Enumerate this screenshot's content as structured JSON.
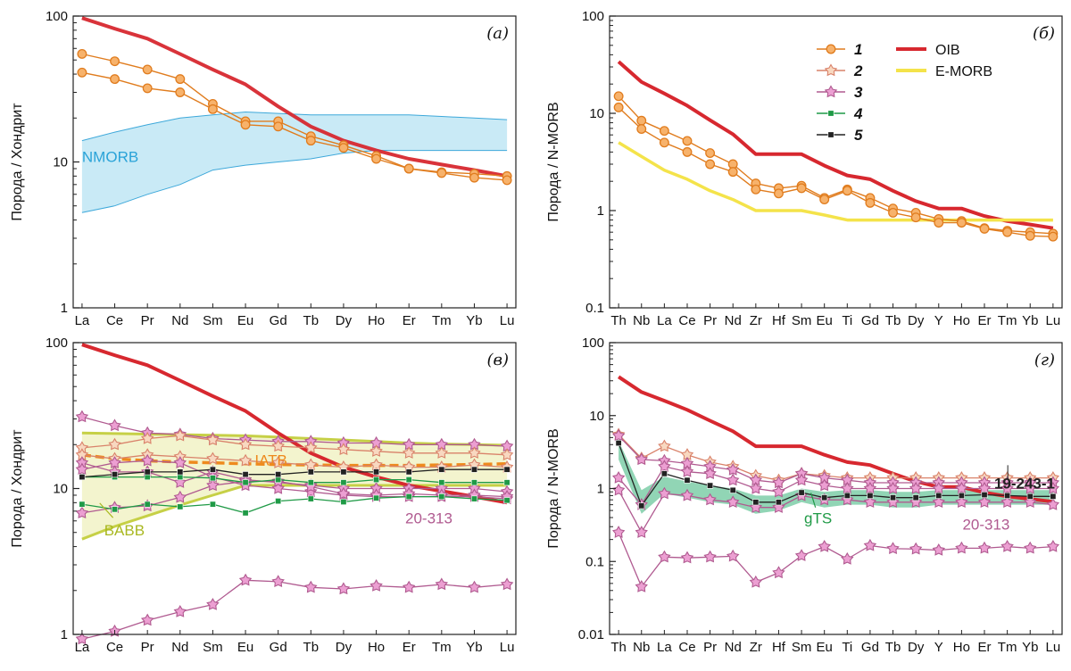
{
  "colors": {
    "oib": "#d7282f",
    "emorb": "#f4e34a",
    "orange_stroke": "#e07c1e",
    "orange_fill": "#f7b26b",
    "s2_stroke": "#d9826a",
    "s2_fill": "#f8d8c0",
    "pink_stroke": "#b05a90",
    "pink_fill": "#ec9fd2",
    "green": "#1f9a46",
    "black": "#222222",
    "nmorb_fill": "#bfe6f5",
    "nmorb_stroke": "#3da8da",
    "nmorb_label": "#2aa3d8",
    "babb_fill": "#f1f2c6",
    "babb_stroke": "#c6d046",
    "babb_label": "#a9b820",
    "iatb": "#ee8a1e",
    "gts_fill": "#6cc79c",
    "gts_label": "#1f9a46",
    "label_pink": "#b05a90",
    "label_black": "#222222"
  },
  "legend": {
    "items": [
      {
        "num": "1",
        "marker": "circle"
      },
      {
        "num": "2",
        "marker": "star-light"
      },
      {
        "num": "3",
        "marker": "star-pink"
      },
      {
        "num": "4",
        "marker": "square-green"
      },
      {
        "num": "5",
        "marker": "square-black"
      }
    ],
    "lines": [
      {
        "name": "OIB"
      },
      {
        "name": "E-MORB"
      }
    ]
  },
  "chart_data": [
    {
      "panel": "(а)",
      "type": "line",
      "yscale": "log",
      "ylim": [
        1,
        100
      ],
      "yticks": [
        "1",
        "10",
        "100"
      ],
      "ylabel": "Порода / Хондрит",
      "categories": [
        "La",
        "Ce",
        "Pr",
        "Nd",
        "Sm",
        "Eu",
        "Gd",
        "Tb",
        "Dy",
        "Ho",
        "Er",
        "Tm",
        "Yb",
        "Lu"
      ],
      "bands": [
        {
          "name": "NMORB",
          "kind": "nmorb",
          "upper": [
            14,
            16,
            18,
            20,
            21,
            22,
            21.5,
            21,
            21,
            21,
            21,
            20.5,
            20,
            19.5
          ],
          "lower": [
            4.5,
            5,
            6,
            7,
            8.8,
            9.5,
            10,
            10.5,
            11.5,
            12,
            12,
            12,
            12,
            12
          ]
        }
      ],
      "series": [
        {
          "kind": "oib",
          "values": [
            97,
            82,
            70,
            55,
            43,
            34,
            24,
            17.5,
            14,
            12,
            10.5,
            9.6,
            8.8,
            8
          ]
        },
        {
          "kind": "s1",
          "values": [
            55,
            49,
            43,
            37,
            25,
            19,
            19,
            15,
            13,
            11,
            9,
            8.5,
            8.3,
            8
          ]
        },
        {
          "kind": "s1",
          "values": [
            41,
            37,
            32,
            30,
            23,
            18,
            17.5,
            14,
            12.5,
            10.5,
            9,
            8.4,
            7.8,
            7.5
          ]
        }
      ],
      "labels": [
        {
          "text": "NMORB",
          "kind": "nmorb"
        }
      ]
    },
    {
      "panel": "(б)",
      "type": "line",
      "yscale": "log",
      "ylim": [
        0.1,
        100
      ],
      "yticks": [
        "0.1",
        "1",
        "10",
        "100"
      ],
      "ylabel": "Порода / N-MORB",
      "categories": [
        "Th",
        "Nb",
        "La",
        "Ce",
        "Pr",
        "Nd",
        "Zr",
        "Hf",
        "Sm",
        "Eu",
        "Ti",
        "Gd",
        "Tb",
        "Dy",
        "Y",
        "Ho",
        "Er",
        "Tm",
        "Yb",
        "Lu"
      ],
      "series": [
        {
          "kind": "oib",
          "values": [
            34,
            21,
            16,
            12,
            8.5,
            6.1,
            3.8,
            3.8,
            3.8,
            2.9,
            2.3,
            2.1,
            1.6,
            1.25,
            1.05,
            1.05,
            0.88,
            0.78,
            0.72,
            0.66
          ]
        },
        {
          "kind": "emorb",
          "values": [
            5,
            3.6,
            2.6,
            2.1,
            1.6,
            1.3,
            1,
            1,
            1,
            0.9,
            0.8,
            0.8,
            0.8,
            0.8,
            0.8,
            0.8,
            0.8,
            0.8,
            0.8,
            0.8
          ]
        },
        {
          "kind": "s1",
          "values": [
            15,
            8.4,
            6.6,
            5.2,
            3.9,
            3,
            1.9,
            1.7,
            1.8,
            1.35,
            1.65,
            1.35,
            1.05,
            0.95,
            0.82,
            0.78,
            0.66,
            0.62,
            0.6,
            0.58
          ]
        },
        {
          "kind": "s1",
          "values": [
            11.5,
            6.9,
            5,
            4,
            3,
            2.5,
            1.65,
            1.5,
            1.7,
            1.3,
            1.6,
            1.2,
            0.95,
            0.85,
            0.75,
            0.75,
            0.65,
            0.6,
            0.55,
            0.54
          ]
        }
      ]
    },
    {
      "panel": "(в)",
      "type": "line",
      "yscale": "log",
      "ylim": [
        1,
        100
      ],
      "yticks": [
        "1",
        "10",
        "100"
      ],
      "ylabel": "Порода / Хондрит",
      "categories": [
        "La",
        "Ce",
        "Pr",
        "Nd",
        "Sm",
        "Eu",
        "Gd",
        "Tb",
        "Dy",
        "Ho",
        "Er",
        "Tm",
        "Yb",
        "Lu"
      ],
      "bands": [
        {
          "name": "BABB",
          "kind": "babb",
          "upper": [
            24,
            23.8,
            23.6,
            23.4,
            23.2,
            23,
            22.5,
            22,
            21.5,
            21,
            20.5,
            20.2,
            20,
            19.8
          ],
          "lower": [
            4.5,
            5.5,
            6.5,
            7.7,
            9,
            10.5,
            10.5,
            10.5,
            10.5,
            10.5,
            10.5,
            10.5,
            10.5,
            10.5
          ]
        }
      ],
      "series": [
        {
          "kind": "oib",
          "values": [
            97,
            82,
            70,
            55,
            43,
            34,
            24,
            17.5,
            14,
            12,
            10.5,
            9.6,
            8.8,
            8
          ]
        },
        {
          "kind": "iatb",
          "values": [
            17,
            16,
            15.5,
            15.2,
            15,
            14.8,
            14.6,
            14.5,
            14.4,
            14.4,
            14.4,
            14.5,
            14.6,
            14.8
          ]
        },
        {
          "kind": "s3",
          "values": [
            31,
            27,
            24,
            23.5,
            22,
            21.5,
            21,
            21,
            20.5,
            20.5,
            20,
            20,
            20,
            19.5
          ]
        },
        {
          "kind": "s2",
          "values": [
            19,
            20,
            22,
            23,
            21.5,
            20,
            19.5,
            19,
            18.5,
            18,
            17.5,
            17.5,
            17.5,
            17
          ]
        },
        {
          "kind": "s2",
          "values": [
            17,
            16,
            17,
            16.5,
            16,
            15.5,
            15,
            14.5,
            14,
            14.5,
            14,
            14,
            14.5,
            14
          ]
        },
        {
          "kind": "s3",
          "values": [
            15,
            13,
            13,
            11,
            13,
            11.5,
            11,
            10.5,
            10,
            10,
            10,
            10,
            10,
            9.5
          ]
        },
        {
          "kind": "s3",
          "values": [
            13.5,
            15,
            15.5,
            15,
            12,
            10.5,
            10,
            9.5,
            9,
            8.8,
            8.8,
            8.8,
            8.8,
            8.5
          ]
        },
        {
          "kind": "s3",
          "values": [
            6.8,
            7.4,
            7.6,
            8.7,
            10.5,
            11.2,
            11.2,
            10.3,
            9.2,
            9,
            9.2,
            9,
            9,
            8.8
          ]
        },
        {
          "kind": "s4",
          "values": [
            7.8,
            7.2,
            7.8,
            7.5,
            7.8,
            6.8,
            8.2,
            8.5,
            8.1,
            8.6,
            8.8,
            8.8,
            8.5,
            8.3
          ]
        },
        {
          "kind": "s4",
          "values": [
            12,
            12,
            12,
            12,
            11.8,
            11,
            11.5,
            11,
            11,
            11.5,
            11.5,
            11,
            11,
            11
          ]
        },
        {
          "kind": "s5",
          "values": [
            12,
            12.5,
            13,
            13,
            13.5,
            12.5,
            12.5,
            13,
            13,
            13,
            13,
            13.5,
            13.5,
            13.5
          ]
        },
        {
          "kind": "s3",
          "values": [
            0.93,
            1.05,
            1.25,
            1.43,
            1.6,
            2.35,
            2.3,
            2.1,
            2.05,
            2.15,
            2.1,
            2.2,
            2.1,
            2.2
          ]
        }
      ],
      "labels": [
        {
          "text": "IATB",
          "kind": "iatb"
        },
        {
          "text": "BABB",
          "kind": "babb"
        },
        {
          "text": "20-313",
          "kind": "pink"
        }
      ]
    },
    {
      "panel": "(г)",
      "type": "line",
      "yscale": "log",
      "ylim": [
        0.01,
        100
      ],
      "yticks": [
        "0.01",
        "0.1",
        "1",
        "10",
        "100"
      ],
      "ylabel": "Порода / N-MORB",
      "categories": [
        "Th",
        "Nb",
        "La",
        "Ce",
        "Pr",
        "Nd",
        "Zr",
        "Hf",
        "Sm",
        "Eu",
        "Ti",
        "Gd",
        "Tb",
        "Dy",
        "Y",
        "Ho",
        "Er",
        "Tm",
        "Yb",
        "Lu"
      ],
      "bands": [
        {
          "name": "gTS",
          "kind": "gts",
          "upper": [
            4.5,
            0.95,
            1.45,
            1.25,
            1.1,
            1,
            0.8,
            0.8,
            1,
            0.9,
            0.95,
            0.95,
            0.9,
            0.9,
            0.95,
            0.95,
            0.95,
            0.95,
            0.95,
            0.95
          ],
          "lower": [
            2.5,
            0.45,
            0.85,
            0.75,
            0.65,
            0.6,
            0.45,
            0.5,
            0.65,
            0.55,
            0.6,
            0.6,
            0.55,
            0.55,
            0.6,
            0.6,
            0.6,
            0.6,
            0.6,
            0.6
          ]
        }
      ],
      "series": [
        {
          "kind": "oib",
          "values": [
            34,
            21,
            16,
            12,
            8.5,
            6.1,
            3.8,
            3.8,
            3.8,
            2.9,
            2.3,
            2.1,
            1.6,
            1.25,
            1.05,
            1.05,
            0.88,
            0.78,
            0.72,
            0.66
          ]
        },
        {
          "kind": "s2",
          "values": [
            5.5,
            2.6,
            3.8,
            2.9,
            2.3,
            2,
            1.5,
            1.3,
            1.6,
            1.5,
            1.4,
            1.4,
            1.4,
            1.4,
            1.4,
            1.4,
            1.4,
            1.4,
            1.4,
            1.4
          ]
        },
        {
          "kind": "s3",
          "values": [
            5.3,
            2.5,
            2.4,
            2.2,
            2,
            1.8,
            1.3,
            1.2,
            1.6,
            1.4,
            1.3,
            1.2,
            1.2,
            1.2,
            1.2,
            1.2,
            1.2,
            1.2,
            1.2,
            1.2
          ]
        },
        {
          "kind": "s3",
          "values": [
            1.4,
            0.6,
            2,
            1.7,
            1.6,
            1.3,
            1,
            0.9,
            1.3,
            1.1,
            1,
            1,
            1,
            1,
            1,
            1,
            1,
            1,
            1,
            1
          ]
        },
        {
          "kind": "s3",
          "values": [
            0.95,
            0.25,
            0.85,
            0.8,
            0.7,
            0.65,
            0.55,
            0.55,
            0.8,
            0.7,
            0.7,
            0.65,
            0.65,
            0.65,
            0.65,
            0.65,
            0.65,
            0.65,
            0.65,
            0.6
          ]
        },
        {
          "kind": "s5",
          "values": [
            4.2,
            0.58,
            1.6,
            1.3,
            1.1,
            0.95,
            0.65,
            0.65,
            0.88,
            0.75,
            0.8,
            0.8,
            0.75,
            0.75,
            0.8,
            0.8,
            0.82,
            0.8,
            0.78,
            0.78
          ]
        },
        {
          "kind": "s3",
          "values": [
            0.25,
            0.045,
            0.115,
            0.112,
            0.115,
            0.118,
            0.052,
            0.07,
            0.12,
            0.16,
            0.108,
            0.165,
            0.15,
            0.148,
            0.143,
            0.152,
            0.152,
            0.16,
            0.152,
            0.16
          ]
        }
      ],
      "labels": [
        {
          "text": "gTS",
          "kind": "gts"
        },
        {
          "text": "19-243-1",
          "kind": "black"
        },
        {
          "text": "20-313",
          "kind": "pink"
        }
      ]
    }
  ]
}
